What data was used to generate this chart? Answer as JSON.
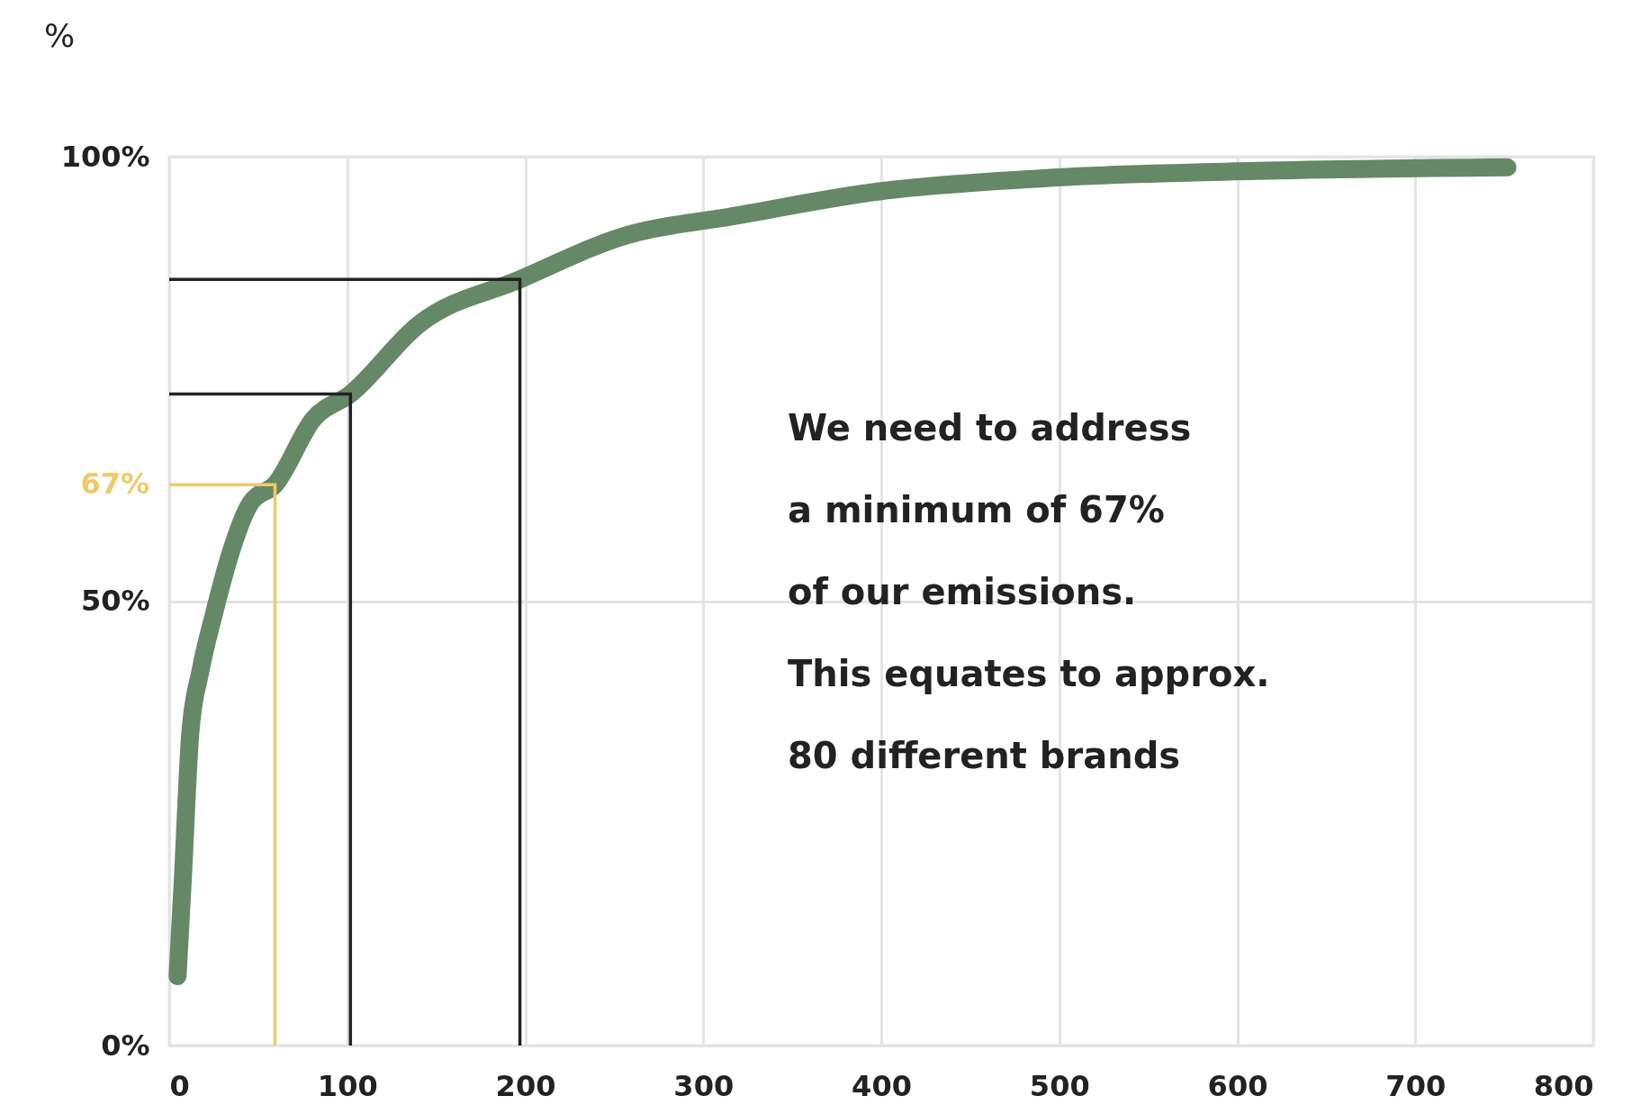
{
  "chart_data": {
    "type": "line",
    "ylabel": "%",
    "xlim": [
      0,
      800
    ],
    "xticks": [
      0,
      100,
      200,
      300,
      400,
      500,
      600,
      700,
      800
    ],
    "ylim": [
      0,
      100
    ],
    "yticks": [
      {
        "value": 0,
        "label": "0%"
      },
      {
        "value": 50,
        "label": "50%"
      },
      {
        "value": 100,
        "label": "100%"
      }
    ],
    "grid": true,
    "marker": "none",
    "line_style": "solid",
    "series": [
      {
        "color": "#658966",
        "x": [
          4.7,
          7.6,
          11.8,
          17.6,
          25.3,
          34.1,
          45.9,
          59.4,
          81,
          101.8,
          140,
          197,
          257.6,
          316.5,
          398.8,
          492.9,
          610.6,
          751.8
        ],
        "values": [
          7.8,
          18.6,
          35.1,
          42.2,
          48.7,
          55.2,
          61.1,
          63.1,
          70.5,
          73.3,
          81.1,
          86.2,
          91.2,
          93.3,
          96.1,
          97.6,
          98.4,
          98.8
        ]
      },
      {
        "color": "#f0c96a",
        "x": [
          0,
          59.4,
          59.4
        ],
        "values": [
          63.1,
          63.1,
          0
        ]
      },
      {
        "color": "#222222",
        "x": [
          0,
          101.8,
          101.8
        ],
        "values": [
          73.3,
          73.3,
          0
        ]
      },
      {
        "color": "#222222",
        "x": [
          0,
          197,
          197
        ],
        "values": [
          86.2,
          86.2,
          0
        ]
      }
    ],
    "annotations": [
      {
        "text": "67%",
        "x": 0,
        "y": 63.1
      },
      "We need to address\na minimum of 67%\nof our emissions.\nThis equates to approx.\n80 different brands"
    ]
  }
}
